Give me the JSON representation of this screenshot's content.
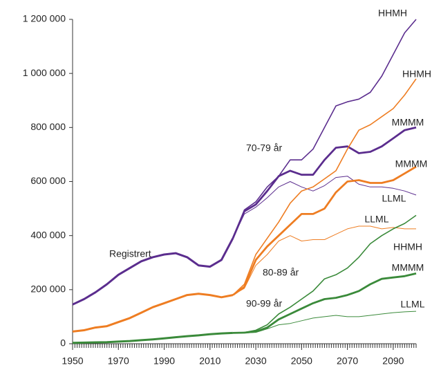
{
  "chart_data": {
    "type": "line",
    "x": [
      1950,
      1955,
      1960,
      1965,
      1970,
      1975,
      1980,
      1985,
      1990,
      1995,
      2000,
      2005,
      2010,
      2015,
      2020,
      2025,
      2030,
      2035,
      2040,
      2045,
      2050,
      2055,
      2060,
      2065,
      2070,
      2075,
      2080,
      2085,
      2090,
      2095,
      2100
    ],
    "xlim": [
      1950,
      2100
    ],
    "xticks": [
      1950,
      1970,
      1990,
      2010,
      2030,
      2050,
      2070,
      2090
    ],
    "ylim": [
      0,
      1200000
    ],
    "yticks": [
      0,
      {
        "value": 200000,
        "label": "200 000"
      },
      {
        "value": 400000,
        "label": "400 000"
      },
      {
        "value": 600000,
        "label": "600 000"
      },
      {
        "value": 800000,
        "label": "800 000"
      },
      {
        "value": 1000000,
        "label": "1 000 000"
      },
      {
        "value": 1200000,
        "label": "1 200 000"
      }
    ],
    "annotations": [
      "70-79 år",
      "Registrert",
      "80-89 år",
      "90-99 år"
    ],
    "series": [
      {
        "color": "#5b2d8e",
        "values": [
          145000,
          165000,
          190000,
          220000,
          255000,
          280000,
          305000,
          320000,
          330000,
          335000,
          320000,
          290000,
          285000,
          310000,
          390000,
          null,
          null,
          null,
          null,
          null,
          null,
          null,
          null,
          null,
          null,
          null,
          null,
          null,
          null,
          null,
          null
        ]
      },
      {
        "name": "HHMH",
        "color": "#5b2d8e",
        "values": [
          null,
          null,
          null,
          null,
          null,
          null,
          null,
          null,
          null,
          null,
          null,
          null,
          null,
          null,
          390000,
          495000,
          525000,
          580000,
          620000,
          680000,
          680000,
          720000,
          800000,
          880000,
          895000,
          905000,
          930000,
          990000,
          1070000,
          1150000,
          1200000
        ]
      },
      {
        "name": "MMMM",
        "color": "#5b2d8e",
        "values": [
          null,
          null,
          null,
          null,
          null,
          null,
          null,
          null,
          null,
          null,
          null,
          null,
          null,
          null,
          390000,
          490000,
          515000,
          565000,
          620000,
          640000,
          625000,
          625000,
          680000,
          725000,
          730000,
          705000,
          710000,
          730000,
          760000,
          790000,
          800000
        ]
      },
      {
        "name": "LLML",
        "color": "#5b2d8e",
        "values": [
          null,
          null,
          null,
          null,
          null,
          null,
          null,
          null,
          null,
          null,
          null,
          null,
          null,
          null,
          390000,
          480000,
          505000,
          540000,
          580000,
          600000,
          580000,
          565000,
          585000,
          615000,
          620000,
          590000,
          580000,
          580000,
          575000,
          565000,
          550000
        ]
      },
      {
        "color": "#ee7d22",
        "values": [
          45000,
          50000,
          60000,
          65000,
          80000,
          95000,
          115000,
          135000,
          150000,
          165000,
          180000,
          185000,
          180000,
          172000,
          180000,
          null,
          null,
          null,
          null,
          null,
          null,
          null,
          null,
          null,
          null,
          null,
          null,
          null,
          null,
          null,
          null
        ]
      },
      {
        "name": "HHMH",
        "color": "#ee7d22",
        "values": [
          null,
          null,
          null,
          null,
          null,
          null,
          null,
          null,
          null,
          null,
          null,
          null,
          null,
          null,
          180000,
          220000,
          330000,
          390000,
          450000,
          520000,
          565000,
          580000,
          610000,
          640000,
          720000,
          790000,
          810000,
          840000,
          870000,
          920000,
          980000
        ]
      },
      {
        "name": "MMMM",
        "color": "#ee7d22",
        "values": [
          null,
          null,
          null,
          null,
          null,
          null,
          null,
          null,
          null,
          null,
          null,
          null,
          null,
          null,
          180000,
          210000,
          310000,
          360000,
          400000,
          440000,
          480000,
          480000,
          500000,
          560000,
          600000,
          605000,
          595000,
          595000,
          605000,
          630000,
          655000
        ]
      },
      {
        "name": "LLML",
        "color": "#ee7d22",
        "values": [
          null,
          null,
          null,
          null,
          null,
          null,
          null,
          null,
          null,
          null,
          null,
          null,
          null,
          null,
          180000,
          205000,
          290000,
          330000,
          380000,
          400000,
          380000,
          385000,
          385000,
          405000,
          425000,
          435000,
          435000,
          425000,
          430000,
          425000,
          425000
        ]
      },
      {
        "color": "#3a8a3a",
        "values": [
          3000,
          4000,
          5000,
          6000,
          8000,
          10000,
          13000,
          16000,
          20000,
          24000,
          28000,
          31000,
          35000,
          38000,
          40000,
          null,
          null,
          null,
          null,
          null,
          null,
          null,
          null,
          null,
          null,
          null,
          null,
          null,
          null,
          null,
          null
        ]
      },
      {
        "name": "HHMH",
        "color": "#3a8a3a",
        "values": [
          null,
          null,
          null,
          null,
          null,
          null,
          null,
          null,
          null,
          null,
          null,
          null,
          null,
          null,
          40000,
          42000,
          50000,
          70000,
          110000,
          135000,
          165000,
          195000,
          240000,
          255000,
          280000,
          320000,
          370000,
          400000,
          425000,
          445000,
          475000
        ]
      },
      {
        "name": "MMMM",
        "color": "#3a8a3a",
        "values": [
          null,
          null,
          null,
          null,
          null,
          null,
          null,
          null,
          null,
          null,
          null,
          null,
          null,
          null,
          40000,
          41000,
          45000,
          60000,
          90000,
          110000,
          130000,
          150000,
          165000,
          170000,
          180000,
          195000,
          220000,
          240000,
          245000,
          250000,
          260000
        ]
      },
      {
        "name": "LLML",
        "color": "#3a8a3a",
        "values": [
          null,
          null,
          null,
          null,
          null,
          null,
          null,
          null,
          null,
          null,
          null,
          null,
          null,
          null,
          40000,
          40000,
          42000,
          55000,
          70000,
          75000,
          85000,
          95000,
          100000,
          105000,
          100000,
          100000,
          105000,
          110000,
          115000,
          118000,
          120000
        ]
      }
    ]
  }
}
